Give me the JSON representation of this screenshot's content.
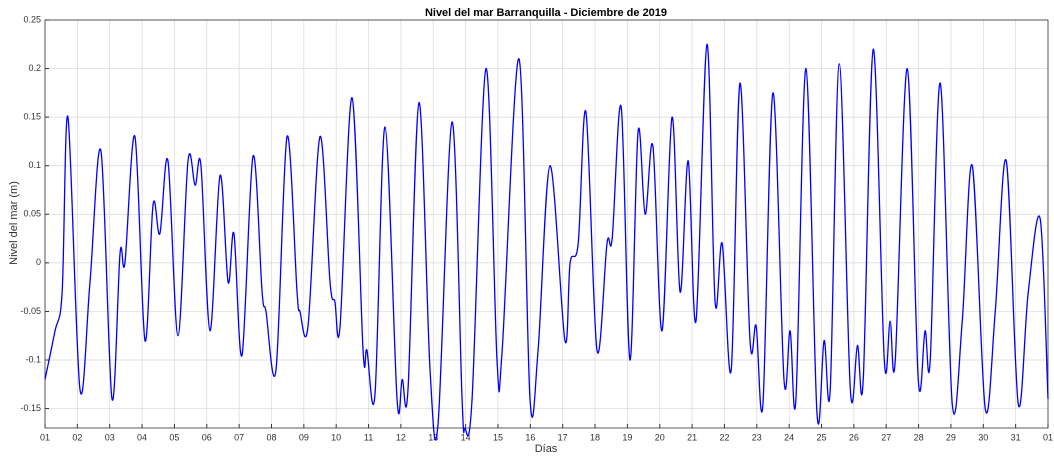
{
  "chart_data": {
    "type": "line",
    "title": "Nivel del mar Barranquilla - Diciembre de 2019",
    "xlabel": "Días",
    "ylabel": "Nivel del mar (m)",
    "x": [
      1.0,
      1.31,
      1.53,
      1.71,
      2.08,
      2.39,
      2.73,
      3.07,
      3.32,
      3.47,
      3.78,
      4.09,
      4.34,
      4.55,
      4.8,
      5.11,
      5.42,
      5.64,
      5.82,
      6.1,
      6.41,
      6.66,
      6.84,
      7.09,
      7.43,
      7.71,
      7.83,
      8.14,
      8.48,
      8.79,
      8.88,
      9.13,
      9.5,
      9.81,
      9.96,
      10.12,
      10.49,
      10.83,
      10.95,
      11.2,
      11.51,
      11.88,
      12.04,
      12.22,
      12.56,
      12.9,
      13.15,
      13.58,
      13.89,
      13.98,
      14.2,
      14.63,
      14.97,
      15.13,
      15.65,
      15.99,
      16.24,
      16.61,
      17.07,
      17.23,
      17.48,
      17.72,
      18.06,
      18.37,
      18.53,
      18.81,
      19.08,
      19.33,
      19.55,
      19.79,
      20.07,
      20.38,
      20.63,
      20.88,
      21.12,
      21.46,
      21.71,
      21.93,
      22.21,
      22.48,
      22.79,
      22.98,
      23.19,
      23.5,
      23.84,
      24.03,
      24.21,
      24.52,
      24.86,
      25.08,
      25.27,
      25.55,
      25.89,
      26.11,
      26.29,
      26.6,
      26.94,
      27.12,
      27.28,
      27.65,
      27.99,
      28.2,
      28.36,
      28.67,
      29.04,
      29.35,
      29.66,
      30.06,
      30.37,
      30.71,
      31.08,
      31.39,
      31.76,
      32.0
    ],
    "series": [
      {
        "color": "#0000ff",
        "values": [
          -0.12,
          -0.07,
          -0.03,
          0.15,
          -0.13,
          -0.02,
          0.115,
          -0.14,
          0.01,
          0.0,
          0.13,
          -0.08,
          0.06,
          0.03,
          0.105,
          -0.075,
          0.105,
          0.08,
          0.1,
          -0.07,
          0.09,
          -0.02,
          0.03,
          -0.095,
          0.11,
          -0.03,
          -0.05,
          -0.11,
          0.13,
          -0.03,
          -0.05,
          -0.065,
          0.13,
          -0.02,
          -0.04,
          -0.065,
          0.17,
          -0.09,
          -0.09,
          -0.135,
          0.14,
          -0.14,
          -0.12,
          -0.13,
          0.165,
          -0.11,
          -0.165,
          0.145,
          -0.14,
          -0.17,
          -0.14,
          0.2,
          -0.1,
          -0.09,
          0.21,
          -0.14,
          -0.09,
          0.1,
          -0.08,
          0.0,
          0.02,
          0.155,
          -0.09,
          0.02,
          0.025,
          0.16,
          -0.1,
          0.135,
          0.05,
          0.12,
          -0.07,
          0.15,
          -0.03,
          0.105,
          -0.06,
          0.225,
          -0.04,
          0.02,
          -0.11,
          0.185,
          -0.08,
          -0.065,
          -0.145,
          0.175,
          -0.12,
          -0.07,
          -0.14,
          0.2,
          -0.155,
          -0.08,
          -0.13,
          0.205,
          -0.13,
          -0.085,
          -0.12,
          0.22,
          -0.1,
          -0.06,
          -0.1,
          0.2,
          -0.12,
          -0.07,
          -0.1,
          0.185,
          -0.145,
          -0.06,
          0.1,
          -0.15,
          -0.05,
          0.105,
          -0.145,
          -0.03,
          0.045,
          -0.14
        ]
      }
    ],
    "xlim": [
      1,
      32
    ],
    "xticks": [
      {
        "value": 1,
        "label": "01"
      },
      {
        "value": 2,
        "label": "02"
      },
      {
        "value": 3,
        "label": "03"
      },
      {
        "value": 4,
        "label": "04"
      },
      {
        "value": 5,
        "label": "05"
      },
      {
        "value": 6,
        "label": "06"
      },
      {
        "value": 7,
        "label": "07"
      },
      {
        "value": 8,
        "label": "08"
      },
      {
        "value": 9,
        "label": "09"
      },
      {
        "value": 10,
        "label": "10"
      },
      {
        "value": 11,
        "label": "11"
      },
      {
        "value": 12,
        "label": "12"
      },
      {
        "value": 13,
        "label": "13"
      },
      {
        "value": 14,
        "label": "14"
      },
      {
        "value": 15,
        "label": "15"
      },
      {
        "value": 16,
        "label": "16"
      },
      {
        "value": 17,
        "label": "17"
      },
      {
        "value": 18,
        "label": "18"
      },
      {
        "value": 19,
        "label": "19"
      },
      {
        "value": 20,
        "label": "20"
      },
      {
        "value": 21,
        "label": "21"
      },
      {
        "value": 22,
        "label": "22"
      },
      {
        "value": 23,
        "label": "23"
      },
      {
        "value": 24,
        "label": "24"
      },
      {
        "value": 25,
        "label": "25"
      },
      {
        "value": 26,
        "label": "26"
      },
      {
        "value": 27,
        "label": "27"
      },
      {
        "value": 28,
        "label": "28"
      },
      {
        "value": 29,
        "label": "29"
      },
      {
        "value": 30,
        "label": "30"
      },
      {
        "value": 31,
        "label": "31"
      },
      {
        "value": 32,
        "label": "01"
      }
    ],
    "ylim": [
      -0.17,
      0.25
    ],
    "yticks": [
      -0.15,
      -0.1,
      -0.05,
      0,
      0.05,
      0.1,
      0.15,
      0.2,
      0.25
    ],
    "grid": true
  }
}
